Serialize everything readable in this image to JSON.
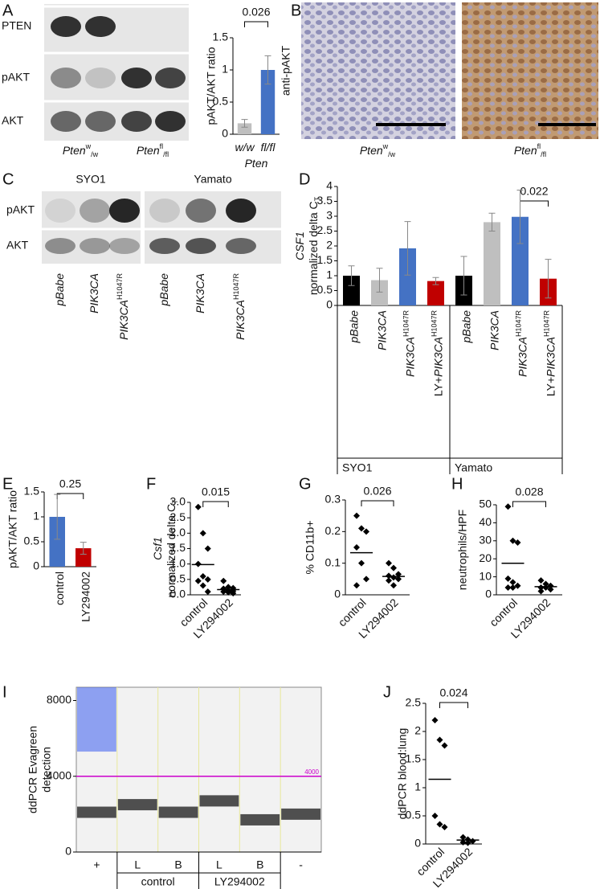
{
  "panel_letters": [
    "A",
    "B",
    "C",
    "D",
    "E",
    "F",
    "G",
    "H",
    "I",
    "J"
  ],
  "blot_A": {
    "rows": [
      "PTEN",
      "pAKT",
      "AKT"
    ],
    "lanes": [
      {
        "text": "Pten",
        "sup": "w",
        "sub": "/w"
      },
      {
        "text": "Pten",
        "sup": "fl",
        "sub": "/fl"
      }
    ]
  },
  "ihc_B": {
    "ylabel": "anti-pAKT",
    "images": [
      {
        "text": "Pten",
        "sup": "w",
        "sub": "/w"
      },
      {
        "text": "Pten",
        "sup": "fl",
        "sub": "/fl"
      }
    ]
  },
  "blot_C": {
    "groups": [
      "SYO1",
      "Yamato"
    ],
    "rows": [
      "pAKT",
      "AKT"
    ],
    "lanes": [
      {
        "text": "pBabe"
      },
      {
        "text": "PIK3CA"
      },
      {
        "text": "PIK3CA",
        "sup": "H1047R"
      },
      {
        "text": "pBabe"
      },
      {
        "text": "PIK3CA"
      },
      {
        "text": "PIK3CA",
        "sup": "H1047R"
      }
    ]
  },
  "chart_data": [
    {
      "type": "bar",
      "ylabel": [
        "pAKT/AKT ratio"
      ],
      "xlabel": {
        "text": "Pten"
      },
      "categories": [
        {
          "text": "w/w"
        },
        {
          "text": "fl/fl"
        }
      ],
      "values": [
        0.17,
        1.0
      ],
      "errors": [
        0.06,
        0.22
      ],
      "colors": [
        "#bfbfbf",
        "#4472c4"
      ],
      "ylim": [
        0,
        1.5
      ],
      "yticks": [
        0,
        0.5,
        1,
        1.5
      ],
      "annotation": "0.026"
    },
    {
      "type": "bar",
      "ylabel": [
        {
          "text": "CSF1"
        },
        {
          "pre": "normalized delta C",
          "sub": "T"
        }
      ],
      "categories": [
        {
          "text": "pBabe"
        },
        {
          "text": "PIK3CA"
        },
        {
          "text": "PIK3CA",
          "sup": "H1047R"
        },
        {
          "pre": "LY+",
          "text": "PIK3CA",
          "sup": "H1047R"
        },
        {
          "text": "pBabe"
        },
        {
          "text": "PIK3CA"
        },
        {
          "text": "PIK3CA",
          "sup": "H1047R"
        },
        {
          "pre": "LY+",
          "text": "PIK3CA",
          "sup": "H1047R"
        }
      ],
      "groups": [
        "SYO1",
        "Yamato"
      ],
      "values": [
        1.0,
        0.85,
        1.92,
        0.82,
        1.0,
        2.8,
        2.98,
        0.9
      ],
      "errors": [
        0.33,
        0.4,
        0.9,
        0.12,
        0.65,
        0.3,
        0.9,
        0.65
      ],
      "colors": [
        "#000000",
        "#bfbfbf",
        "#4472c4",
        "#c00000",
        "#000000",
        "#bfbfbf",
        "#4472c4",
        "#c00000"
      ],
      "ylim": [
        0,
        4
      ],
      "yticks": [
        0,
        0.5,
        1,
        1.5,
        2,
        2.5,
        3,
        3.5,
        4
      ],
      "annotation": "0.022"
    },
    {
      "type": "bar",
      "ylabel": [
        "pAKT/AKT ratio"
      ],
      "categories": [
        "control",
        "LY294002"
      ],
      "values": [
        1.0,
        0.37
      ],
      "errors": [
        0.45,
        0.12
      ],
      "colors": [
        "#4472c4",
        "#c00000"
      ],
      "ylim": [
        0,
        1.5
      ],
      "yticks": [
        0,
        0.5,
        1,
        1.5
      ],
      "annotation": "0.25"
    },
    {
      "type": "strip",
      "ylabel": [
        {
          "text": "Csf1"
        },
        {
          "pre": "normalized delta C",
          "sub": "T"
        }
      ],
      "categories": [
        "control",
        "LY294002"
      ],
      "values": [
        [
          2.85,
          2.0,
          1.5,
          1.0,
          0.6,
          0.5,
          0.45,
          0.3,
          0.1
        ],
        [
          0.45,
          0.25,
          0.22,
          0.2,
          0.15,
          0.12,
          0.1,
          0.08,
          0.05
        ]
      ],
      "means": [
        0.98,
        0.17
      ],
      "ylim": [
        0,
        3
      ],
      "yticks": [
        {
          "value": 0,
          "label": "0.0"
        },
        0.5,
        {
          "value": 1,
          "label": "1.0"
        },
        1.5,
        {
          "value": 2,
          "label": "2.0"
        },
        2.5,
        {
          "value": 3,
          "label": "3.0"
        }
      ],
      "annotation": "0.015"
    },
    {
      "type": "strip",
      "ylabel": [
        "% CD11b+"
      ],
      "categories": [
        "control",
        "LY294002"
      ],
      "values": [
        [
          0.25,
          0.21,
          0.2,
          0.15,
          0.1,
          0.05,
          0.03
        ],
        [
          0.1,
          0.085,
          0.065,
          0.06,
          0.055,
          0.05,
          0.045,
          0.03
        ]
      ],
      "means": [
        0.133,
        0.058
      ],
      "ylim": [
        0,
        0.3
      ],
      "yticks": [
        0,
        0.1,
        0.2,
        0.3
      ],
      "annotation": "0.026"
    },
    {
      "type": "strip",
      "ylabel": [
        "neutrophils/HPF"
      ],
      "categories": [
        "control",
        "LY294002"
      ],
      "values": [
        [
          49,
          30,
          29,
          9,
          7,
          5,
          4,
          4
        ],
        [
          8,
          6,
          5,
          4,
          4,
          3,
          2
        ]
      ],
      "means": [
        17.5,
        4.5
      ],
      "ylim": [
        0,
        50
      ],
      "yticks": [
        0,
        10,
        20,
        30,
        40,
        50
      ],
      "annotation": "0.028"
    },
    {
      "type": "droplet",
      "ylabel": [
        "ddPCR Evagreen",
        "detection"
      ],
      "categories": [
        "+",
        "L",
        "B",
        "L",
        "B",
        "-"
      ],
      "groups": [
        "control",
        "LY294002"
      ],
      "negative": [
        2100,
        2500,
        2100,
        2700,
        1700,
        2000
      ],
      "positive": [
        7000,
        null,
        null,
        null,
        null,
        null
      ],
      "threshold": 4000,
      "threshold_label": "4000",
      "ylim": [
        0,
        8700
      ],
      "yticks": [
        0,
        4000,
        8000
      ]
    },
    {
      "type": "strip",
      "ylabel": [
        "ddPCR blood:lung"
      ],
      "categories": [
        "control",
        "LY294002"
      ],
      "values": [
        [
          2.2,
          1.85,
          1.75,
          0.5,
          0.35,
          0.3
        ],
        [
          0.12,
          0.08,
          0.05,
          0.03,
          0.02
        ]
      ],
      "means": [
        1.15,
        0.07
      ],
      "ylim": [
        0,
        2.5
      ],
      "yticks": [
        0,
        0.5,
        1,
        1.5,
        2,
        2.5
      ],
      "annotation": "0.024"
    }
  ]
}
